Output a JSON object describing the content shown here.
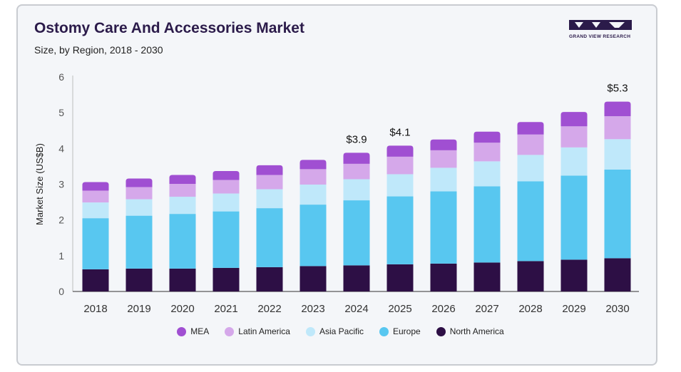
{
  "header": {
    "title": "Ostomy Care And Accessories Market",
    "subtitle": "Size, by Region, 2018 - 2030",
    "logo_text": "GRAND VIEW RESEARCH"
  },
  "colors": {
    "mea": "#a04fd2",
    "latin_america": "#d5a8ea",
    "asia_pacific": "#bfe8fa",
    "europe": "#58c7f0",
    "north_america": "#2d0f45"
  },
  "chart_data": {
    "type": "bar",
    "stacked": true,
    "title": "Ostomy Care And Accessories Market",
    "subtitle": "Size, by Region, 2018 - 2030",
    "xlabel": "",
    "ylabel": "Market Size (US$B)",
    "ylim": [
      0,
      6
    ],
    "yticks": [
      0,
      1,
      2,
      3,
      4,
      5,
      6
    ],
    "grid": false,
    "legend_position": "bottom",
    "categories": [
      "2018",
      "2019",
      "2020",
      "2021",
      "2022",
      "2023",
      "2024",
      "2025",
      "2026",
      "2027",
      "2028",
      "2029",
      "2030"
    ],
    "series": [
      {
        "name": "North America",
        "color": "#2d0f45",
        "values": [
          0.62,
          0.64,
          0.64,
          0.66,
          0.68,
          0.71,
          0.73,
          0.76,
          0.78,
          0.81,
          0.85,
          0.89,
          0.93
        ]
      },
      {
        "name": "Europe",
        "color": "#58c7f0",
        "values": [
          1.43,
          1.48,
          1.53,
          1.58,
          1.65,
          1.72,
          1.82,
          1.9,
          2.02,
          2.13,
          2.23,
          2.35,
          2.48
        ]
      },
      {
        "name": "Asia Pacific",
        "color": "#bfe8fa",
        "values": [
          0.44,
          0.46,
          0.48,
          0.5,
          0.53,
          0.56,
          0.59,
          0.62,
          0.66,
          0.7,
          0.74,
          0.79,
          0.85
        ]
      },
      {
        "name": "Latin America",
        "color": "#d5a8ea",
        "values": [
          0.33,
          0.34,
          0.36,
          0.38,
          0.4,
          0.43,
          0.43,
          0.49,
          0.49,
          0.52,
          0.57,
          0.59,
          0.64
        ]
      },
      {
        "name": "MEA",
        "color": "#a04fd2",
        "values": [
          0.24,
          0.24,
          0.25,
          0.25,
          0.27,
          0.26,
          0.31,
          0.31,
          0.3,
          0.31,
          0.35,
          0.4,
          0.41
        ]
      }
    ],
    "annotations": [
      {
        "category": "2024",
        "text": "$3.9"
      },
      {
        "category": "2025",
        "text": "$4.1"
      },
      {
        "category": "2030",
        "text": "$5.3"
      }
    ]
  }
}
